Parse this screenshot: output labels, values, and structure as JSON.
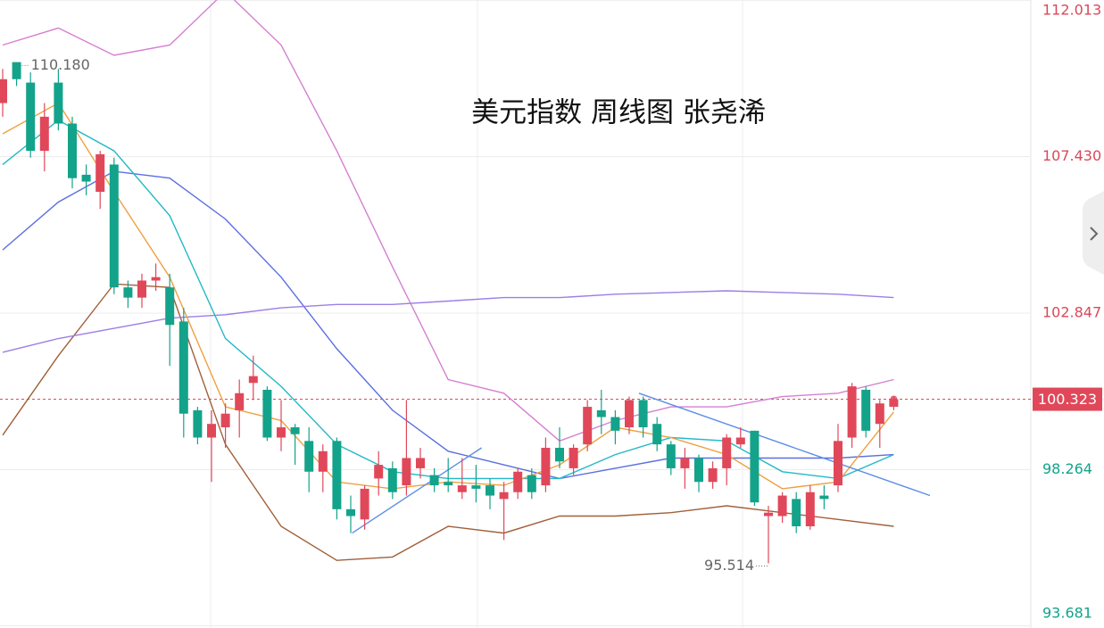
{
  "chart_data": {
    "type": "candlestick",
    "title": "美元指数 周线图 张尧浠",
    "ylim": [
      93.62,
      112.02
    ],
    "yticks": [
      93.681,
      98.264,
      102.847,
      {
        "value": 107.43,
        "label": "107.430"
      },
      112.013
    ],
    "up_color": "#e0485a",
    "down_color": "#13a38a",
    "candles": {
      "open": [
        109.0,
        110.2,
        109.6,
        107.6,
        109.6,
        108.4,
        106.9,
        106.4,
        107.2,
        103.6,
        103.3,
        103.8,
        103.6,
        102.6,
        100.0,
        99.2,
        99.5,
        100.0,
        100.8,
        100.6,
        99.2,
        99.5,
        99.1,
        98.2,
        99.1,
        97.1,
        96.8,
        98.0,
        98.3,
        97.8,
        98.3,
        98.1,
        97.9,
        97.6,
        97.8,
        97.8,
        97.4,
        97.6,
        98.1,
        97.8,
        98.9,
        98.3,
        99.0,
        100.0,
        99.8,
        99.5,
        100.3,
        99.6,
        99.0,
        98.3,
        98.6,
        97.9,
        98.3,
        99.0,
        99.4,
        96.9,
        96.9,
        97.4,
        96.6,
        97.5,
        97.8,
        99.2,
        100.6,
        99.6,
        100.1
      ],
      "high": [
        110.0,
        110.18,
        109.9,
        109.0,
        110.0,
        108.6,
        107.2,
        107.6,
        107.4,
        103.8,
        104.0,
        104.3,
        104.0,
        103.0,
        100.1,
        100.0,
        100.2,
        100.9,
        101.6,
        100.7,
        100.3,
        99.6,
        99.5,
        99.0,
        99.2,
        97.5,
        97.8,
        98.8,
        98.5,
        100.3,
        98.9,
        98.3,
        98.6,
        98.6,
        98.4,
        98.0,
        97.9,
        98.3,
        98.3,
        99.2,
        99.5,
        99.0,
        100.3,
        100.6,
        100.0,
        100.4,
        100.4,
        99.8,
        99.1,
        98.9,
        98.7,
        98.5,
        99.3,
        99.5,
        99.4,
        97.2,
        97.6,
        97.6,
        97.8,
        97.8,
        99.6,
        100.8,
        100.7,
        100.3,
        100.4
      ],
      "low": [
        108.6,
        109.5,
        107.4,
        107.0,
        108.2,
        106.5,
        106.3,
        105.9,
        103.4,
        103.0,
        103.0,
        103.5,
        101.3,
        99.2,
        99.0,
        97.9,
        98.9,
        99.2,
        100.3,
        99.1,
        98.8,
        98.4,
        97.6,
        97.6,
        96.8,
        96.4,
        96.5,
        97.5,
        97.4,
        97.5,
        98.0,
        97.6,
        97.6,
        97.4,
        97.3,
        97.1,
        96.2,
        97.4,
        97.4,
        97.6,
        98.3,
        98.1,
        98.8,
        99.3,
        99.0,
        99.3,
        99.2,
        98.8,
        98.1,
        97.7,
        97.6,
        97.7,
        97.8,
        98.9,
        97.2,
        95.514,
        96.7,
        96.4,
        96.5,
        97.1,
        97.6,
        98.9,
        99.2,
        98.9,
        100.0
      ],
      "close": [
        109.7,
        109.7,
        107.6,
        108.6,
        108.4,
        106.8,
        106.7,
        107.5,
        103.6,
        103.3,
        103.8,
        103.9,
        102.5,
        99.9,
        99.2,
        99.6,
        99.9,
        100.5,
        101.0,
        99.2,
        99.5,
        99.3,
        98.2,
        98.8,
        97.1,
        96.9,
        97.7,
        98.4,
        97.6,
        98.6,
        98.6,
        97.8,
        97.8,
        97.8,
        97.7,
        97.5,
        97.6,
        98.2,
        97.6,
        98.9,
        98.5,
        98.9,
        100.1,
        99.8,
        99.4,
        100.3,
        99.5,
        99.0,
        98.3,
        98.6,
        97.9,
        98.3,
        99.2,
        99.2,
        97.3,
        97.0,
        97.5,
        96.6,
        97.6,
        97.4,
        99.1,
        100.7,
        99.4,
        100.2,
        100.323
      ]
    },
    "line_x": [
      0,
      4,
      8,
      12,
      16,
      20,
      24,
      28,
      32,
      36,
      40,
      44,
      48,
      52,
      56,
      60,
      64
    ],
    "series": [
      {
        "color": "#d67fd0",
        "values": [
          110.7,
          111.2,
          110.4,
          110.7,
          112.27,
          110.7,
          107.6,
          104.2,
          100.9,
          100.5,
          99.1,
          99.7,
          100.1,
          100.1,
          100.4,
          100.5,
          100.9
        ]
      },
      {
        "color": "#a0603a",
        "values": [
          99.27,
          101.6,
          103.7,
          103.6,
          99.0,
          96.6,
          95.6,
          95.7,
          96.6,
          96.4,
          96.9,
          96.9,
          97.0,
          97.2,
          97.0,
          96.8,
          96.6
        ]
      },
      {
        "color": "#5a6fe0",
        "values": [
          104.7,
          106.1,
          107.0,
          106.8,
          105.6,
          103.9,
          101.8,
          100.0,
          98.8,
          98.4,
          98.0,
          98.3,
          98.6,
          98.6,
          98.6,
          98.6,
          98.7
        ]
      },
      {
        "color": "#9b7fe6",
        "values": [
          101.7,
          102.1,
          102.4,
          102.7,
          102.8,
          103.0,
          103.1,
          103.1,
          103.2,
          103.3,
          103.3,
          103.4,
          103.45,
          103.5,
          103.45,
          103.4,
          103.3
        ]
      },
      {
        "color": "#22b8c8",
        "values": [
          107.2,
          108.5,
          107.6,
          105.7,
          102.1,
          100.7,
          99.0,
          98.2,
          98.0,
          98.0,
          98.0,
          98.7,
          99.2,
          99.1,
          98.2,
          98.0,
          98.7
        ]
      },
      {
        "color": "#f0a040",
        "values": [
          108.1,
          109.0,
          106.4,
          103.9,
          100.1,
          99.7,
          97.9,
          97.7,
          97.9,
          97.8,
          98.4,
          99.5,
          99.2,
          98.7,
          97.7,
          97.9,
          99.95
        ]
      }
    ],
    "trendlines": [
      {
        "color": "#5b8de6",
        "x": [
          25.1,
          34.4
        ],
        "y": [
          96.4,
          98.9
        ]
      },
      {
        "color": "#5b8de6",
        "x": [
          45.7,
          66.6
        ],
        "y": [
          100.5,
          97.5
        ]
      }
    ],
    "annotations": [
      {
        "text": "110.180",
        "index": 1
      },
      {
        "text": "95.514",
        "index": 55
      }
    ]
  }
}
